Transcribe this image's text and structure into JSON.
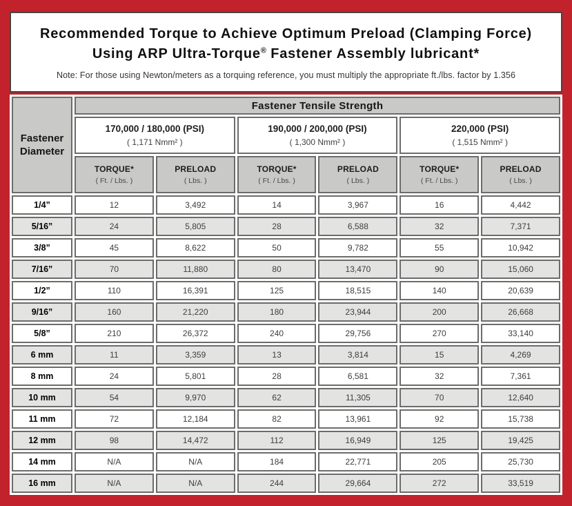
{
  "colors": {
    "frame_red": "#c2222b",
    "panel_border": "#4a4342",
    "cell_border": "#6b6b6b",
    "header_gray": "#c9c9c8",
    "stripe_gray": "#e3e3e2",
    "value_text": "#3d3d3d"
  },
  "title": {
    "line1": "Recommended Torque to Achieve Optimum Preload (Clamping Force)",
    "line2_pre": "Using ARP Ultra-Torque",
    "line2_sup": "®",
    "line2_post": " Fastener Assembly lubricant*"
  },
  "note": "Note: For those using Newton/meters as a torquing reference, you must multiply the appropriate ft./lbs. factor by 1.356",
  "table": {
    "tensile_strength_header": "Fastener Tensile Strength",
    "diameter_header": {
      "line1": "Fastener",
      "line2": "Diameter"
    },
    "groups": [
      {
        "psi": "170,000 / 180,000 (PSI)",
        "nmm": "( 1,171 Nmm² )"
      },
      {
        "psi": "190,000 / 200,000 (PSI)",
        "nmm": "( 1,300 Nmm² )"
      },
      {
        "psi": "220,000 (PSI)",
        "nmm": "( 1,515 Nmm² )"
      }
    ],
    "col_headers": {
      "torque_label": "TORQUE*",
      "torque_unit": "( Ft. / Lbs. )",
      "preload_label": "PRELOAD",
      "preload_unit": "( Lbs. )"
    },
    "rows": [
      {
        "diameter": "1/4”",
        "values": [
          "12",
          "3,492",
          "14",
          "3,967",
          "16",
          "4,442"
        ]
      },
      {
        "diameter": "5/16”",
        "values": [
          "24",
          "5,805",
          "28",
          "6,588",
          "32",
          "7,371"
        ]
      },
      {
        "diameter": "3/8”",
        "values": [
          "45",
          "8,622",
          "50",
          "9,782",
          "55",
          "10,942"
        ]
      },
      {
        "diameter": "7/16”",
        "values": [
          "70",
          "11,880",
          "80",
          "13,470",
          "90",
          "15,060"
        ]
      },
      {
        "diameter": "1/2”",
        "values": [
          "110",
          "16,391",
          "125",
          "18,515",
          "140",
          "20,639"
        ]
      },
      {
        "diameter": "9/16”",
        "values": [
          "160",
          "21,220",
          "180",
          "23,944",
          "200",
          "26,668"
        ]
      },
      {
        "diameter": "5/8”",
        "values": [
          "210",
          "26,372",
          "240",
          "29,756",
          "270",
          "33,140"
        ]
      },
      {
        "diameter": "6 mm",
        "values": [
          "11",
          "3,359",
          "13",
          "3,814",
          "15",
          "4,269"
        ]
      },
      {
        "diameter": "8 mm",
        "values": [
          "24",
          "5,801",
          "28",
          "6,581",
          "32",
          "7,361"
        ]
      },
      {
        "diameter": "10 mm",
        "values": [
          "54",
          "9,970",
          "62",
          "11,305",
          "70",
          "12,640"
        ]
      },
      {
        "diameter": "11 mm",
        "values": [
          "72",
          "12,184",
          "82",
          "13,961",
          "92",
          "15,738"
        ]
      },
      {
        "diameter": "12 mm",
        "values": [
          "98",
          "14,472",
          "112",
          "16,949",
          "125",
          "19,425"
        ]
      },
      {
        "diameter": "14 mm",
        "values": [
          "N/A",
          "N/A",
          "184",
          "22,771",
          "205",
          "25,730"
        ]
      },
      {
        "diameter": "16 mm",
        "values": [
          "N/A",
          "N/A",
          "244",
          "29,664",
          "272",
          "33,519"
        ]
      }
    ]
  }
}
